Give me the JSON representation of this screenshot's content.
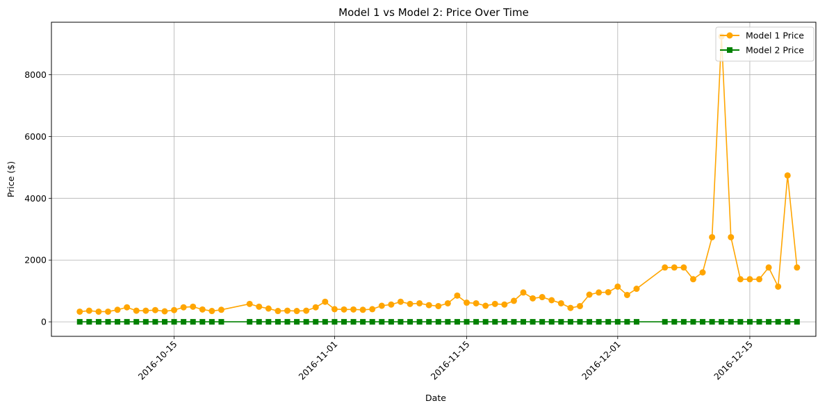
{
  "chart_data": {
    "type": "line",
    "title": "Model 1 vs Model 2: Price Over Time",
    "xlabel": "Date",
    "ylabel": "Price ($)",
    "x_range": [
      "2016-10-02",
      "2016-12-22"
    ],
    "ylim": [
      -470,
      9700
    ],
    "x_ticks": [
      "2016-10-15",
      "2016-11-01",
      "2016-11-15",
      "2016-12-01",
      "2016-12-15"
    ],
    "y_ticks": [
      0,
      2000,
      4000,
      6000,
      8000
    ],
    "grid": true,
    "legend_position": "top-right",
    "series": [
      {
        "name": "Model 1 Price",
        "color": "#ffa500",
        "marker": "circle",
        "points": [
          [
            "2016-10-05",
            330
          ],
          [
            "2016-10-06",
            360
          ],
          [
            "2016-10-07",
            330
          ],
          [
            "2016-10-08",
            330
          ],
          [
            "2016-10-09",
            390
          ],
          [
            "2016-10-10",
            470
          ],
          [
            "2016-10-11",
            360
          ],
          [
            "2016-10-12",
            360
          ],
          [
            "2016-10-13",
            380
          ],
          [
            "2016-10-14",
            340
          ],
          [
            "2016-10-15",
            380
          ],
          [
            "2016-10-16",
            470
          ],
          [
            "2016-10-17",
            490
          ],
          [
            "2016-10-18",
            400
          ],
          [
            "2016-10-19",
            350
          ],
          [
            "2016-10-20",
            390
          ],
          [
            "2016-10-23",
            580
          ],
          [
            "2016-10-24",
            490
          ],
          [
            "2016-10-25",
            430
          ],
          [
            "2016-10-26",
            350
          ],
          [
            "2016-10-27",
            360
          ],
          [
            "2016-10-28",
            350
          ],
          [
            "2016-10-29",
            360
          ],
          [
            "2016-10-30",
            470
          ],
          [
            "2016-10-31",
            650
          ],
          [
            "2016-11-01",
            410
          ],
          [
            "2016-11-02",
            400
          ],
          [
            "2016-11-03",
            400
          ],
          [
            "2016-11-04",
            390
          ],
          [
            "2016-11-05",
            410
          ],
          [
            "2016-11-06",
            520
          ],
          [
            "2016-11-07",
            560
          ],
          [
            "2016-11-08",
            650
          ],
          [
            "2016-11-09",
            580
          ],
          [
            "2016-11-10",
            600
          ],
          [
            "2016-11-11",
            540
          ],
          [
            "2016-11-12",
            510
          ],
          [
            "2016-11-13",
            600
          ],
          [
            "2016-11-14",
            850
          ],
          [
            "2016-11-15",
            620
          ],
          [
            "2016-11-16",
            600
          ],
          [
            "2016-11-17",
            520
          ],
          [
            "2016-11-18",
            580
          ],
          [
            "2016-11-19",
            560
          ],
          [
            "2016-11-20",
            680
          ],
          [
            "2016-11-21",
            950
          ],
          [
            "2016-11-22",
            760
          ],
          [
            "2016-11-23",
            800
          ],
          [
            "2016-11-24",
            700
          ],
          [
            "2016-11-25",
            600
          ],
          [
            "2016-11-26",
            450
          ],
          [
            "2016-11-27",
            510
          ],
          [
            "2016-11-28",
            880
          ],
          [
            "2016-11-29",
            950
          ],
          [
            "2016-11-30",
            960
          ],
          [
            "2016-12-01",
            1140
          ],
          [
            "2016-12-02",
            870
          ],
          [
            "2016-12-03",
            1070
          ],
          [
            "2016-12-06",
            1760
          ],
          [
            "2016-12-07",
            1760
          ],
          [
            "2016-12-08",
            1760
          ],
          [
            "2016-12-09",
            1380
          ],
          [
            "2016-12-10",
            1600
          ],
          [
            "2016-12-11",
            2740
          ],
          [
            "2016-12-12",
            9240
          ],
          [
            "2016-12-13",
            2740
          ],
          [
            "2016-12-14",
            1380
          ],
          [
            "2016-12-15",
            1380
          ],
          [
            "2016-12-16",
            1380
          ],
          [
            "2016-12-17",
            1760
          ],
          [
            "2016-12-18",
            1140
          ],
          [
            "2016-12-19",
            4740
          ],
          [
            "2016-12-20",
            1760
          ]
        ]
      },
      {
        "name": "Model 2 Price",
        "color": "#008000",
        "marker": "square",
        "points": [
          [
            "2016-10-05",
            0
          ],
          [
            "2016-10-06",
            0
          ],
          [
            "2016-10-07",
            0
          ],
          [
            "2016-10-08",
            0
          ],
          [
            "2016-10-09",
            0
          ],
          [
            "2016-10-10",
            0
          ],
          [
            "2016-10-11",
            0
          ],
          [
            "2016-10-12",
            0
          ],
          [
            "2016-10-13",
            0
          ],
          [
            "2016-10-14",
            0
          ],
          [
            "2016-10-15",
            0
          ],
          [
            "2016-10-16",
            0
          ],
          [
            "2016-10-17",
            0
          ],
          [
            "2016-10-18",
            0
          ],
          [
            "2016-10-19",
            0
          ],
          [
            "2016-10-20",
            0
          ],
          [
            "2016-10-23",
            0
          ],
          [
            "2016-10-24",
            0
          ],
          [
            "2016-10-25",
            0
          ],
          [
            "2016-10-26",
            0
          ],
          [
            "2016-10-27",
            0
          ],
          [
            "2016-10-28",
            0
          ],
          [
            "2016-10-29",
            0
          ],
          [
            "2016-10-30",
            0
          ],
          [
            "2016-10-31",
            0
          ],
          [
            "2016-11-01",
            0
          ],
          [
            "2016-11-02",
            0
          ],
          [
            "2016-11-03",
            0
          ],
          [
            "2016-11-04",
            0
          ],
          [
            "2016-11-05",
            0
          ],
          [
            "2016-11-06",
            0
          ],
          [
            "2016-11-07",
            0
          ],
          [
            "2016-11-08",
            0
          ],
          [
            "2016-11-09",
            0
          ],
          [
            "2016-11-10",
            0
          ],
          [
            "2016-11-11",
            0
          ],
          [
            "2016-11-12",
            0
          ],
          [
            "2016-11-13",
            0
          ],
          [
            "2016-11-14",
            0
          ],
          [
            "2016-11-15",
            0
          ],
          [
            "2016-11-16",
            0
          ],
          [
            "2016-11-17",
            0
          ],
          [
            "2016-11-18",
            0
          ],
          [
            "2016-11-19",
            0
          ],
          [
            "2016-11-20",
            0
          ],
          [
            "2016-11-21",
            0
          ],
          [
            "2016-11-22",
            0
          ],
          [
            "2016-11-23",
            0
          ],
          [
            "2016-11-24",
            0
          ],
          [
            "2016-11-25",
            0
          ],
          [
            "2016-11-26",
            0
          ],
          [
            "2016-11-27",
            0
          ],
          [
            "2016-11-28",
            0
          ],
          [
            "2016-11-29",
            0
          ],
          [
            "2016-11-30",
            0
          ],
          [
            "2016-12-01",
            0
          ],
          [
            "2016-12-02",
            0
          ],
          [
            "2016-12-03",
            0
          ],
          [
            "2016-12-06",
            0
          ],
          [
            "2016-12-07",
            0
          ],
          [
            "2016-12-08",
            0
          ],
          [
            "2016-12-09",
            0
          ],
          [
            "2016-12-10",
            0
          ],
          [
            "2016-12-11",
            0
          ],
          [
            "2016-12-12",
            0
          ],
          [
            "2016-12-13",
            0
          ],
          [
            "2016-12-14",
            0
          ],
          [
            "2016-12-15",
            0
          ],
          [
            "2016-12-16",
            0
          ],
          [
            "2016-12-17",
            0
          ],
          [
            "2016-12-18",
            0
          ],
          [
            "2016-12-19",
            0
          ],
          [
            "2016-12-20",
            0
          ]
        ]
      }
    ]
  }
}
